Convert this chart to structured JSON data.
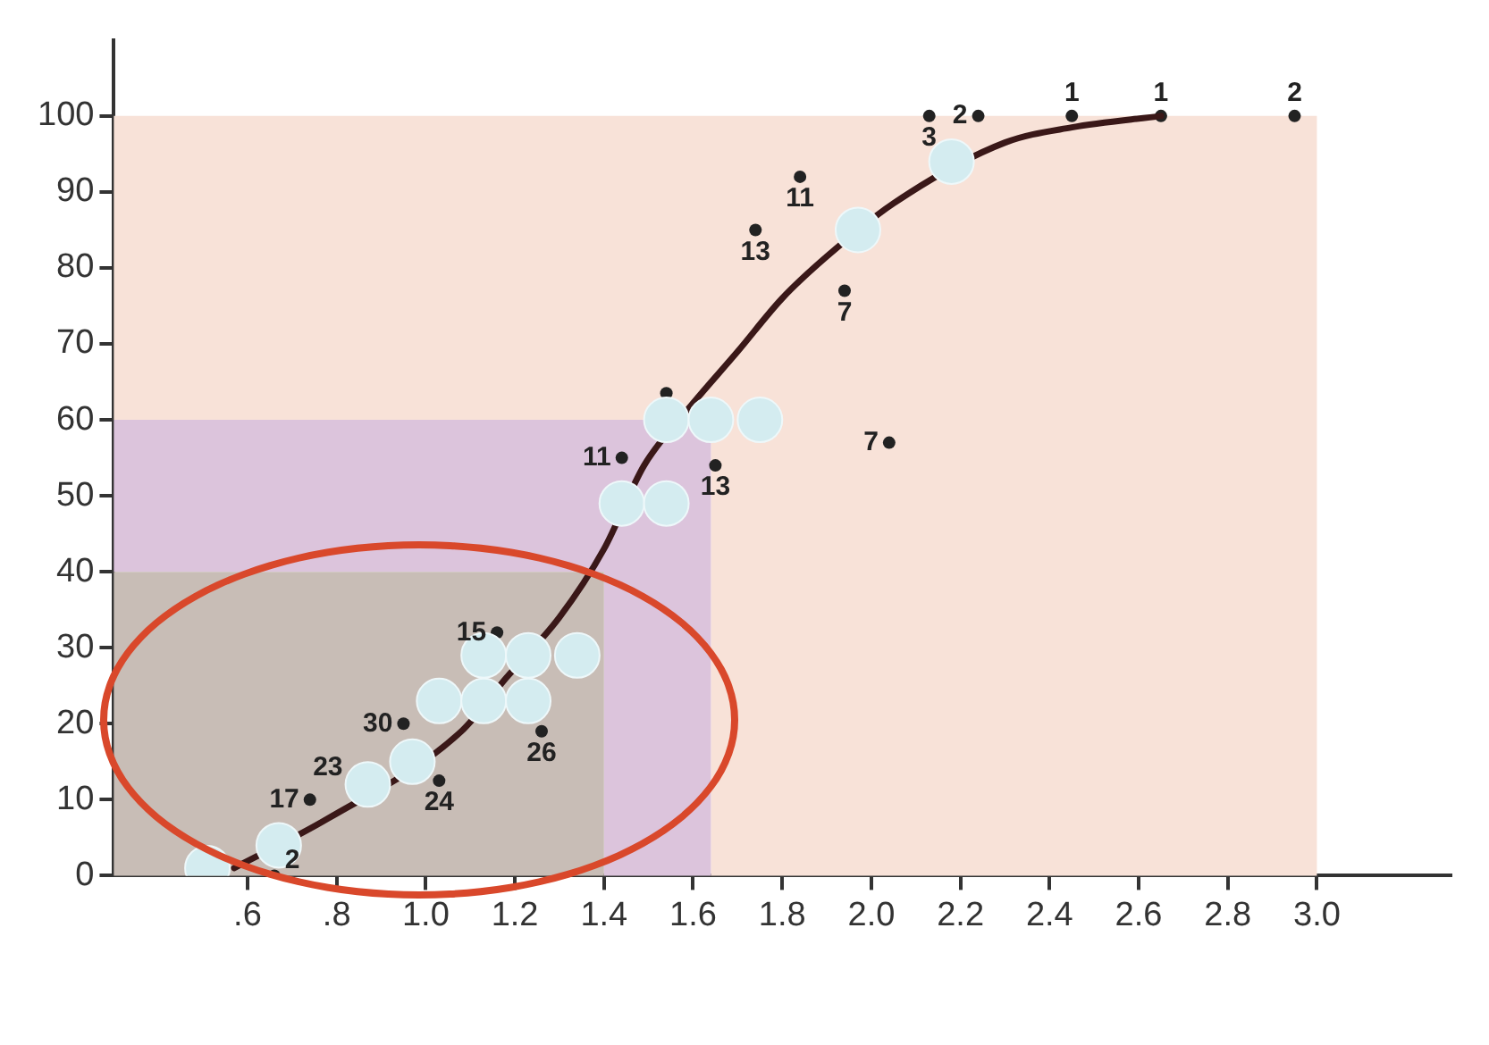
{
  "chart_data": {
    "type": "scatter",
    "xlim": [
      0.3,
      3.3
    ],
    "xticks": [
      {
        "value": 0.6,
        "label": ".6"
      },
      {
        "value": 0.8,
        "label": ".8"
      },
      {
        "value": 1.0,
        "label": "1.0"
      },
      {
        "value": 1.2,
        "label": "1.2"
      },
      {
        "value": 1.4,
        "label": "1.4"
      },
      {
        "value": 1.6,
        "label": "1.6"
      },
      {
        "value": 1.8,
        "label": "1.8"
      },
      {
        "value": 2.0,
        "label": "2.0"
      },
      {
        "value": 2.2,
        "label": "2.2"
      },
      {
        "value": 2.4,
        "label": "2.4"
      },
      {
        "value": 2.6,
        "label": "2.6"
      },
      {
        "value": 2.8,
        "label": "2.8"
      },
      {
        "value": 3.0,
        "label": "3.0"
      }
    ],
    "ylim": [
      0,
      110
    ],
    "yticks": [
      0,
      10,
      20,
      30,
      40,
      50,
      60,
      70,
      80,
      90,
      100
    ],
    "grid": false,
    "legend": false,
    "marker": "circle",
    "stacked": true,
    "x": [
      0.3,
      1.4,
      1.4,
      1.64,
      1.64,
      3.0
    ],
    "series": [
      {
        "type": "area",
        "color": "#c8bdb6",
        "values": [
          40,
          40,
          0,
          0,
          0,
          0
        ],
        "marker": "none"
      },
      {
        "type": "area",
        "color": "#dcc4dc",
        "values": [
          20,
          20,
          60,
          60,
          0,
          0
        ],
        "marker": "none"
      },
      {
        "type": "area",
        "color": "#f8e2d8",
        "values": [
          40,
          40,
          40,
          40,
          100,
          100
        ],
        "marker": "none"
      },
      {
        "type": "scatter",
        "color": "#222222",
        "x": [
          1.16,
          0.95,
          0.74,
          1.03,
          1.26,
          0.66,
          1.44,
          1.65,
          1.54,
          1.74,
          1.84,
          1.94,
          2.04,
          2.13,
          2.24,
          2.45,
          2.65,
          2.95
        ],
        "values": [
          32,
          20,
          10,
          12.5,
          19,
          0,
          55,
          54,
          63.5,
          85,
          92,
          77,
          57,
          100,
          100,
          100,
          100,
          100
        ]
      },
      {
        "type": "line",
        "color": "#3a1818",
        "marker": "none",
        "x": [
          0.57,
          0.78,
          1.08,
          1.18,
          1.3,
          1.4,
          1.49,
          1.59,
          1.7,
          1.8,
          1.9,
          2.05,
          2.3,
          2.45,
          2.65
        ],
        "values": [
          1,
          7.5,
          19,
          26,
          34,
          43,
          54,
          61.5,
          69,
          76,
          81.5,
          88.5,
          96.5,
          98.5,
          100
        ]
      },
      {
        "type": "scatter",
        "color": "#d4ecf0",
        "x": [
          0.51,
          0.67,
          0.87,
          0.97,
          1.03,
          1.13,
          1.23,
          1.13,
          1.23,
          1.34,
          1.44,
          1.54,
          1.54,
          1.64,
          1.75,
          1.97,
          2.18
        ],
        "values": [
          1,
          4,
          12,
          15,
          23,
          23,
          23,
          29,
          29,
          29,
          49,
          49,
          60,
          60,
          60,
          85,
          94
        ]
      }
    ],
    "annotations": [
      {
        "text": "15",
        "x": 1.16,
        "y": 32
      },
      {
        "text": "30",
        "x": 0.95,
        "y": 20
      },
      {
        "text": "23",
        "x": 0.87,
        "y": 12
      },
      {
        "text": "17",
        "x": 0.74,
        "y": 10
      },
      {
        "text": "24",
        "x": 1.03,
        "y": 12.5
      },
      {
        "text": "26",
        "x": 1.26,
        "y": 19
      },
      {
        "text": "2",
        "x": 0.66,
        "y": 0
      },
      {
        "text": "11",
        "x": 1.44,
        "y": 55
      },
      {
        "text": "13",
        "x": 1.65,
        "y": 54
      },
      {
        "text": "13",
        "x": 1.74,
        "y": 85
      },
      {
        "text": "11",
        "x": 1.84,
        "y": 92
      },
      {
        "text": "7",
        "x": 1.94,
        "y": 77
      },
      {
        "text": "7",
        "x": 2.04,
        "y": 57
      },
      {
        "text": "3",
        "x": 2.13,
        "y": 100
      },
      {
        "text": "2",
        "x": 2.24,
        "y": 100
      },
      {
        "text": "1",
        "x": 2.45,
        "y": 100
      },
      {
        "text": "1",
        "x": 2.65,
        "y": 100
      },
      {
        "text": "2",
        "x": 2.95,
        "y": 100
      }
    ]
  }
}
